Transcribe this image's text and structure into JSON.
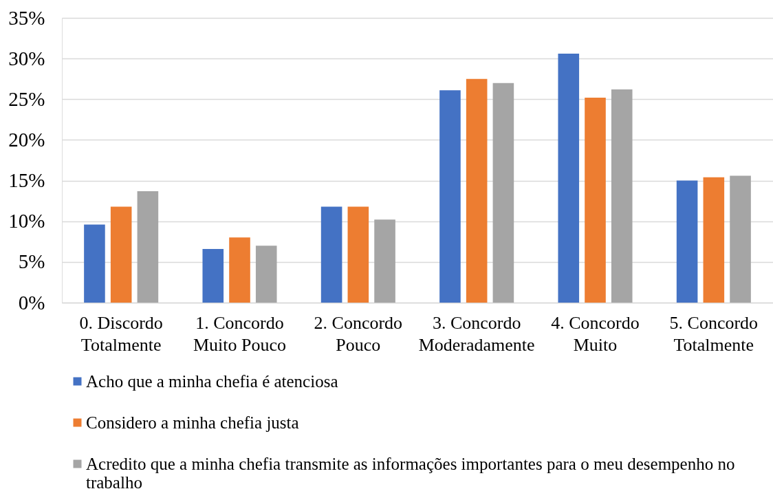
{
  "chart_data": {
    "type": "bar",
    "categories": [
      "0. Discordo Totalmente",
      "1. Concordo Muito Pouco",
      "2. Concordo Pouco",
      "3. Concordo Moderadamente",
      "4. Concordo Muito",
      "5. Concordo Totalmente"
    ],
    "series": [
      {
        "name": "Acho que a minha chefia é atenciosa",
        "color": "#4472c4",
        "values": [
          9.6,
          6.6,
          11.8,
          26.1,
          30.6,
          15.0
        ]
      },
      {
        "name": "Considero a minha chefia justa",
        "color": "#ed7d31",
        "values": [
          11.8,
          8.0,
          11.8,
          27.5,
          25.2,
          15.4
        ]
      },
      {
        "name": "Acredito que a minha chefia transmite as informações importantes para o meu desempenho no trabalho",
        "color": "#a5a5a5",
        "values": [
          13.7,
          7.0,
          10.2,
          27.0,
          26.2,
          15.6
        ]
      }
    ],
    "ylim": [
      0,
      35
    ],
    "yticks": [
      {
        "value": 0,
        "label": "0%"
      },
      {
        "value": 5,
        "label": "5%"
      },
      {
        "value": 10,
        "label": "10%"
      },
      {
        "value": 15,
        "label": "15%"
      },
      {
        "value": 20,
        "label": "20%"
      },
      {
        "value": 25,
        "label": "25%"
      },
      {
        "value": 30,
        "label": "30%"
      },
      {
        "value": 35,
        "label": "35%"
      }
    ],
    "grid": "y",
    "legend": "bottom"
  }
}
